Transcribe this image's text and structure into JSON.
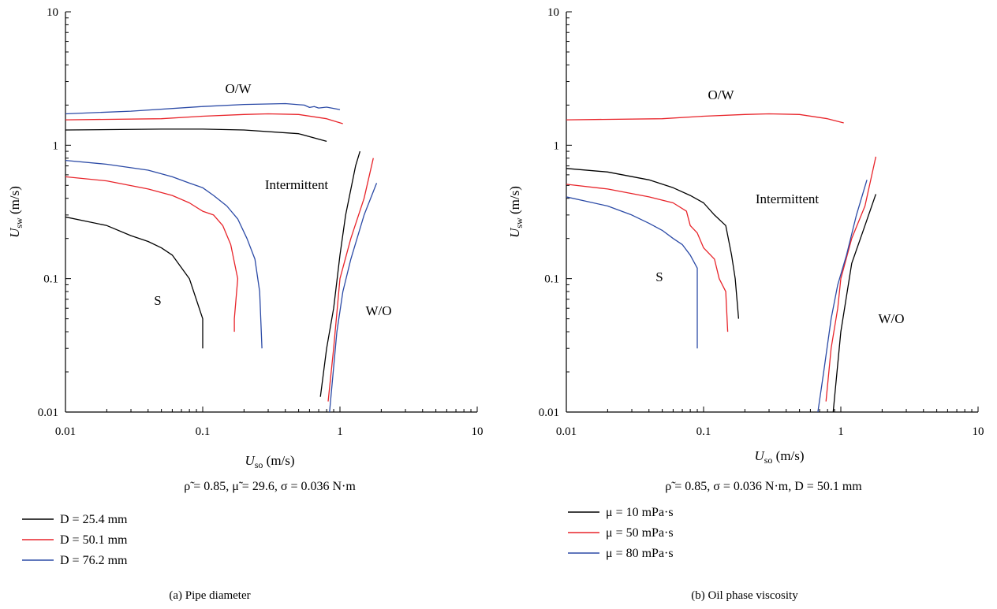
{
  "chart_data": [
    {
      "type": "line",
      "x_scale": "log",
      "y_scale": "log",
      "xlim": [
        0.01,
        10
      ],
      "ylim": [
        0.01,
        10
      ],
      "x_tick_labels": [
        "0.01",
        "0.1",
        "1",
        "10"
      ],
      "y_tick_labels": [
        "0.01",
        "0.1",
        "1",
        "10"
      ],
      "xlabel": "U_so (m/s)",
      "xlabel_main": "U",
      "xlabel_sub": "so",
      "xlabel_unit": "(m/s)",
      "ylabel": "U_sw (m/s)",
      "ylabel_main": "U",
      "ylabel_sub": "sw",
      "ylabel_unit": "(m/s)",
      "conditions": "ρ̃ = 0.85, μ̃ = 29.6, σ = 0.036 N·m",
      "caption": "(a)  Pipe diameter",
      "region_labels": [
        "O/W",
        "Intermittent",
        "S",
        "W/O"
      ],
      "series": [
        {
          "name": "D = 25.4 mm",
          "color": "#000000",
          "segments": [
            [
              [
                0.01,
                1.3
              ],
              [
                0.05,
                1.32
              ],
              [
                0.1,
                1.32
              ],
              [
                0.2,
                1.3
              ],
              [
                0.5,
                1.22
              ],
              [
                0.8,
                1.07
              ]
            ],
            [
              [
                0.01,
                0.29
              ],
              [
                0.02,
                0.25
              ],
              [
                0.03,
                0.21
              ],
              [
                0.04,
                0.19
              ],
              [
                0.05,
                0.17
              ],
              [
                0.06,
                0.15
              ],
              [
                0.08,
                0.1
              ],
              [
                0.1,
                0.05
              ],
              [
                0.1,
                0.03
              ]
            ],
            [
              [
                0.72,
                0.013
              ],
              [
                0.8,
                0.03
              ],
              [
                0.9,
                0.06
              ],
              [
                1.0,
                0.15
              ],
              [
                1.1,
                0.3
              ],
              [
                1.3,
                0.7
              ],
              [
                1.4,
                0.9
              ]
            ]
          ]
        },
        {
          "name": "D = 50.1 mm",
          "color": "#e8242a",
          "segments": [
            [
              [
                0.01,
                1.55
              ],
              [
                0.05,
                1.58
              ],
              [
                0.1,
                1.65
              ],
              [
                0.2,
                1.7
              ],
              [
                0.3,
                1.72
              ],
              [
                0.5,
                1.7
              ],
              [
                0.8,
                1.58
              ],
              [
                1.05,
                1.45
              ]
            ],
            [
              [
                0.01,
                0.58
              ],
              [
                0.02,
                0.54
              ],
              [
                0.04,
                0.47
              ],
              [
                0.06,
                0.42
              ],
              [
                0.08,
                0.37
              ],
              [
                0.1,
                0.32
              ],
              [
                0.12,
                0.3
              ],
              [
                0.14,
                0.25
              ],
              [
                0.16,
                0.18
              ],
              [
                0.18,
                0.1
              ],
              [
                0.17,
                0.05
              ],
              [
                0.17,
                0.04
              ]
            ],
            [
              [
                0.82,
                0.012
              ],
              [
                0.9,
                0.03
              ],
              [
                1.0,
                0.1
              ],
              [
                1.2,
                0.2
              ],
              [
                1.5,
                0.4
              ],
              [
                1.75,
                0.8
              ]
            ]
          ]
        },
        {
          "name": "D = 76.2 mm",
          "color": "#2b4aa6",
          "segments": [
            [
              [
                0.01,
                1.72
              ],
              [
                0.03,
                1.8
              ],
              [
                0.1,
                1.95
              ],
              [
                0.2,
                2.02
              ],
              [
                0.4,
                2.05
              ],
              [
                0.55,
                2.0
              ],
              [
                0.6,
                1.92
              ],
              [
                0.65,
                1.95
              ],
              [
                0.7,
                1.9
              ],
              [
                0.8,
                1.93
              ],
              [
                1.0,
                1.85
              ]
            ],
            [
              [
                0.01,
                0.77
              ],
              [
                0.02,
                0.72
              ],
              [
                0.04,
                0.65
              ],
              [
                0.06,
                0.58
              ],
              [
                0.08,
                0.52
              ],
              [
                0.1,
                0.48
              ],
              [
                0.12,
                0.42
              ],
              [
                0.15,
                0.35
              ],
              [
                0.18,
                0.28
              ],
              [
                0.21,
                0.2
              ],
              [
                0.24,
                0.14
              ],
              [
                0.26,
                0.08
              ],
              [
                0.27,
                0.03
              ]
            ],
            [
              [
                0.84,
                0.01
              ],
              [
                0.95,
                0.04
              ],
              [
                1.05,
                0.08
              ],
              [
                1.2,
                0.14
              ],
              [
                1.5,
                0.3
              ],
              [
                1.85,
                0.52
              ]
            ]
          ]
        }
      ]
    },
    {
      "type": "line",
      "x_scale": "log",
      "y_scale": "log",
      "xlim": [
        0.01,
        10
      ],
      "ylim": [
        0.01,
        10
      ],
      "x_tick_labels": [
        "0.01",
        "0.1",
        "1",
        "10"
      ],
      "y_tick_labels": [
        "0.01",
        "0.1",
        "1",
        "10"
      ],
      "xlabel": "U_so (m/s)",
      "xlabel_main": "U",
      "xlabel_sub": "so",
      "xlabel_unit": "(m/s)",
      "ylabel": "U_sw (m/s)",
      "ylabel_main": "U",
      "ylabel_sub": "sw",
      "ylabel_unit": "(m/s)",
      "conditions": "ρ̃ = 0.85, σ = 0.036 N·m, D = 50.1 mm",
      "caption": "(b)  Oil phase viscosity",
      "region_labels": [
        "O/W",
        "Intermittent",
        "S",
        "W/O"
      ],
      "series": [
        {
          "name": "μ = 10 mPa·s",
          "color": "#000000",
          "segments": [
            [
              [
                0.01,
                0.67
              ],
              [
                0.02,
                0.63
              ],
              [
                0.04,
                0.55
              ],
              [
                0.06,
                0.48
              ],
              [
                0.08,
                0.42
              ],
              [
                0.1,
                0.37
              ],
              [
                0.12,
                0.3
              ],
              [
                0.145,
                0.25
              ],
              [
                0.16,
                0.15
              ],
              [
                0.17,
                0.1
              ],
              [
                0.18,
                0.05
              ]
            ],
            [
              [
                0.88,
                0.01
              ],
              [
                1.0,
                0.04
              ],
              [
                1.2,
                0.13
              ],
              [
                1.5,
                0.25
              ],
              [
                1.8,
                0.43
              ]
            ]
          ]
        },
        {
          "name": "μ = 50 mPa·s",
          "color": "#e8242a",
          "segments": [
            [
              [
                0.01,
                1.55
              ],
              [
                0.05,
                1.58
              ],
              [
                0.1,
                1.65
              ],
              [
                0.2,
                1.7
              ],
              [
                0.3,
                1.72
              ],
              [
                0.5,
                1.7
              ],
              [
                0.8,
                1.58
              ],
              [
                1.05,
                1.47
              ]
            ],
            [
              [
                0.01,
                0.51
              ],
              [
                0.02,
                0.47
              ],
              [
                0.04,
                0.41
              ],
              [
                0.06,
                0.37
              ],
              [
                0.075,
                0.32
              ],
              [
                0.08,
                0.25
              ],
              [
                0.09,
                0.22
              ],
              [
                0.1,
                0.17
              ],
              [
                0.12,
                0.14
              ],
              [
                0.13,
                0.1
              ],
              [
                0.145,
                0.08
              ],
              [
                0.15,
                0.04
              ]
            ],
            [
              [
                0.78,
                0.012
              ],
              [
                0.85,
                0.03
              ],
              [
                0.95,
                0.06
              ],
              [
                1.0,
                0.1
              ],
              [
                1.2,
                0.2
              ],
              [
                1.5,
                0.35
              ],
              [
                1.8,
                0.82
              ]
            ]
          ]
        },
        {
          "name": "μ = 80 mPa·s",
          "color": "#2b4aa6",
          "segments": [
            [
              [
                0.01,
                0.41
              ],
              [
                0.02,
                0.35
              ],
              [
                0.03,
                0.3
              ],
              [
                0.04,
                0.26
              ],
              [
                0.05,
                0.23
              ],
              [
                0.06,
                0.2
              ],
              [
                0.07,
                0.18
              ],
              [
                0.08,
                0.15
              ],
              [
                0.09,
                0.12
              ],
              [
                0.09,
                0.03
              ]
            ],
            [
              [
                0.68,
                0.01
              ],
              [
                0.75,
                0.02
              ],
              [
                0.85,
                0.05
              ],
              [
                0.95,
                0.09
              ],
              [
                1.1,
                0.15
              ],
              [
                1.3,
                0.3
              ],
              [
                1.55,
                0.55
              ]
            ]
          ]
        }
      ]
    }
  ]
}
